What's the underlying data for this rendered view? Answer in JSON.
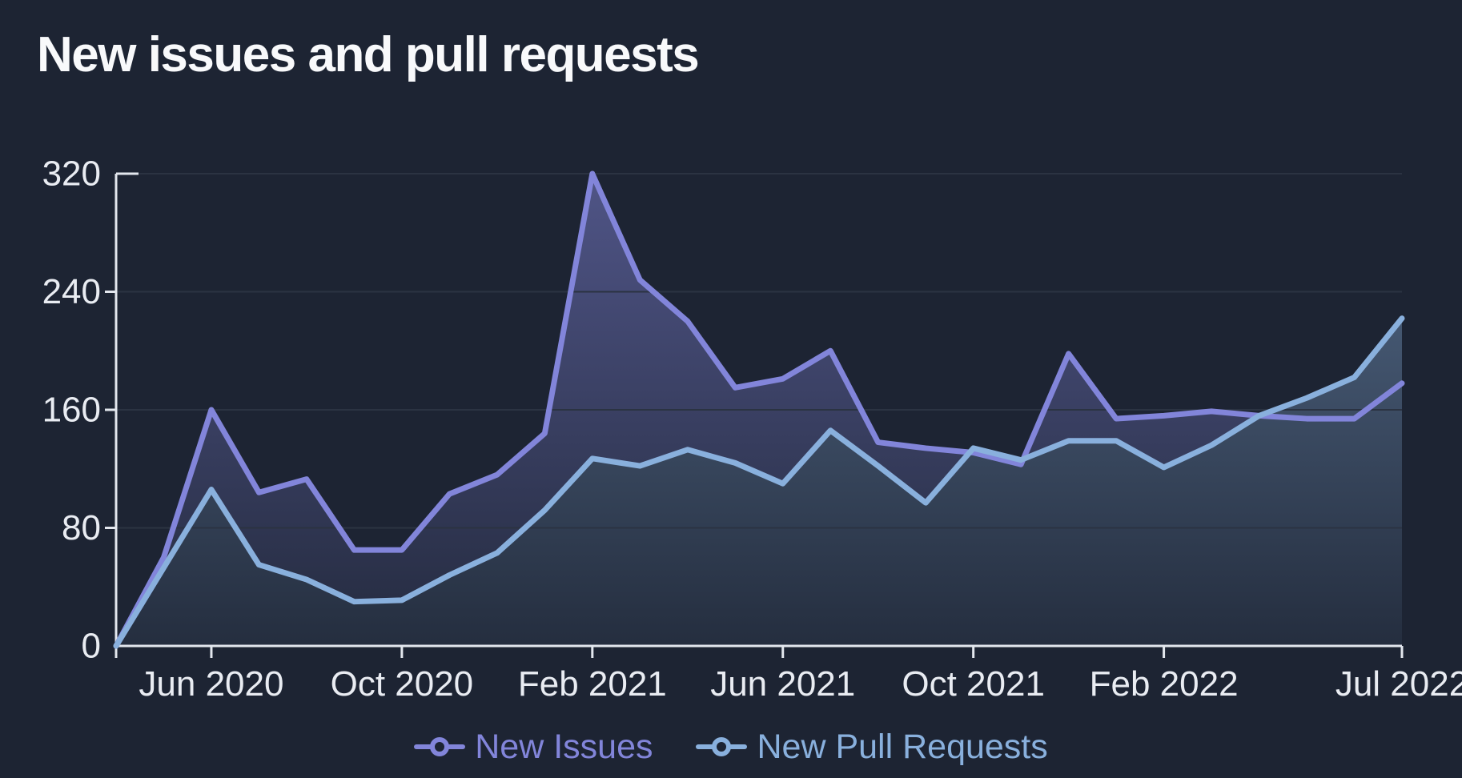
{
  "title": "New issues and pull requests",
  "colors": {
    "background": "#1d2433",
    "title_text": "#f8f9fb",
    "axis": "#e3e7ee",
    "tick_label": "#e9ecf2",
    "gridline": "#2b3342",
    "new_issues": "#8285da",
    "new_pull_requests": "#89b0dd"
  },
  "chart_data": {
    "type": "area",
    "title": "New issues and pull requests",
    "x": [
      "Apr 2020",
      "May 2020",
      "Jun 2020",
      "Jul 2020",
      "Aug 2020",
      "Sep 2020",
      "Oct 2020",
      "Nov 2020",
      "Dec 2020",
      "Jan 2021",
      "Feb 2021",
      "Mar 2021",
      "Apr 2021",
      "May 2021",
      "Jun 2021",
      "Jul 2021",
      "Aug 2021",
      "Sep 2021",
      "Oct 2021",
      "Nov 2021",
      "Dec 2021",
      "Jan 2022",
      "Feb 2022",
      "Mar 2022",
      "Apr 2022",
      "May 2022",
      "Jun 2022",
      "Jul 2022"
    ],
    "series": [
      {
        "name": "New Issues",
        "color": "#8285da",
        "values": [
          0,
          60,
          160,
          104,
          113,
          65,
          65,
          103,
          116,
          144,
          320,
          248,
          220,
          175,
          181,
          200,
          138,
          134,
          131,
          123,
          198,
          154,
          156,
          159,
          156,
          154,
          154,
          178
        ]
      },
      {
        "name": "New Pull Requests",
        "color": "#89b0dd",
        "values": [
          0,
          53,
          106,
          55,
          45,
          30,
          31,
          48,
          63,
          92,
          127,
          122,
          133,
          124,
          110,
          146,
          122,
          97,
          134,
          126,
          139,
          139,
          121,
          136,
          156,
          168,
          182,
          222
        ]
      }
    ],
    "ylim": [
      0,
      320
    ],
    "yticks": [
      0,
      80,
      160,
      240,
      320
    ],
    "xticks": [
      {
        "index": 2,
        "label": "Jun 2020"
      },
      {
        "index": 6,
        "label": "Oct 2020"
      },
      {
        "index": 10,
        "label": "Feb 2021"
      },
      {
        "index": 14,
        "label": "Jun 2021"
      },
      {
        "index": 18,
        "label": "Oct 2021"
      },
      {
        "index": 22,
        "label": "Feb 2022"
      },
      {
        "index": 27,
        "label": "Jul 2022"
      }
    ],
    "grid": "horizontal",
    "legend_position": "bottom"
  },
  "legend": {
    "items": [
      {
        "label": "New Issues",
        "series_key": "new_issues"
      },
      {
        "label": "New Pull Requests",
        "series_key": "new_pull_requests"
      }
    ]
  }
}
